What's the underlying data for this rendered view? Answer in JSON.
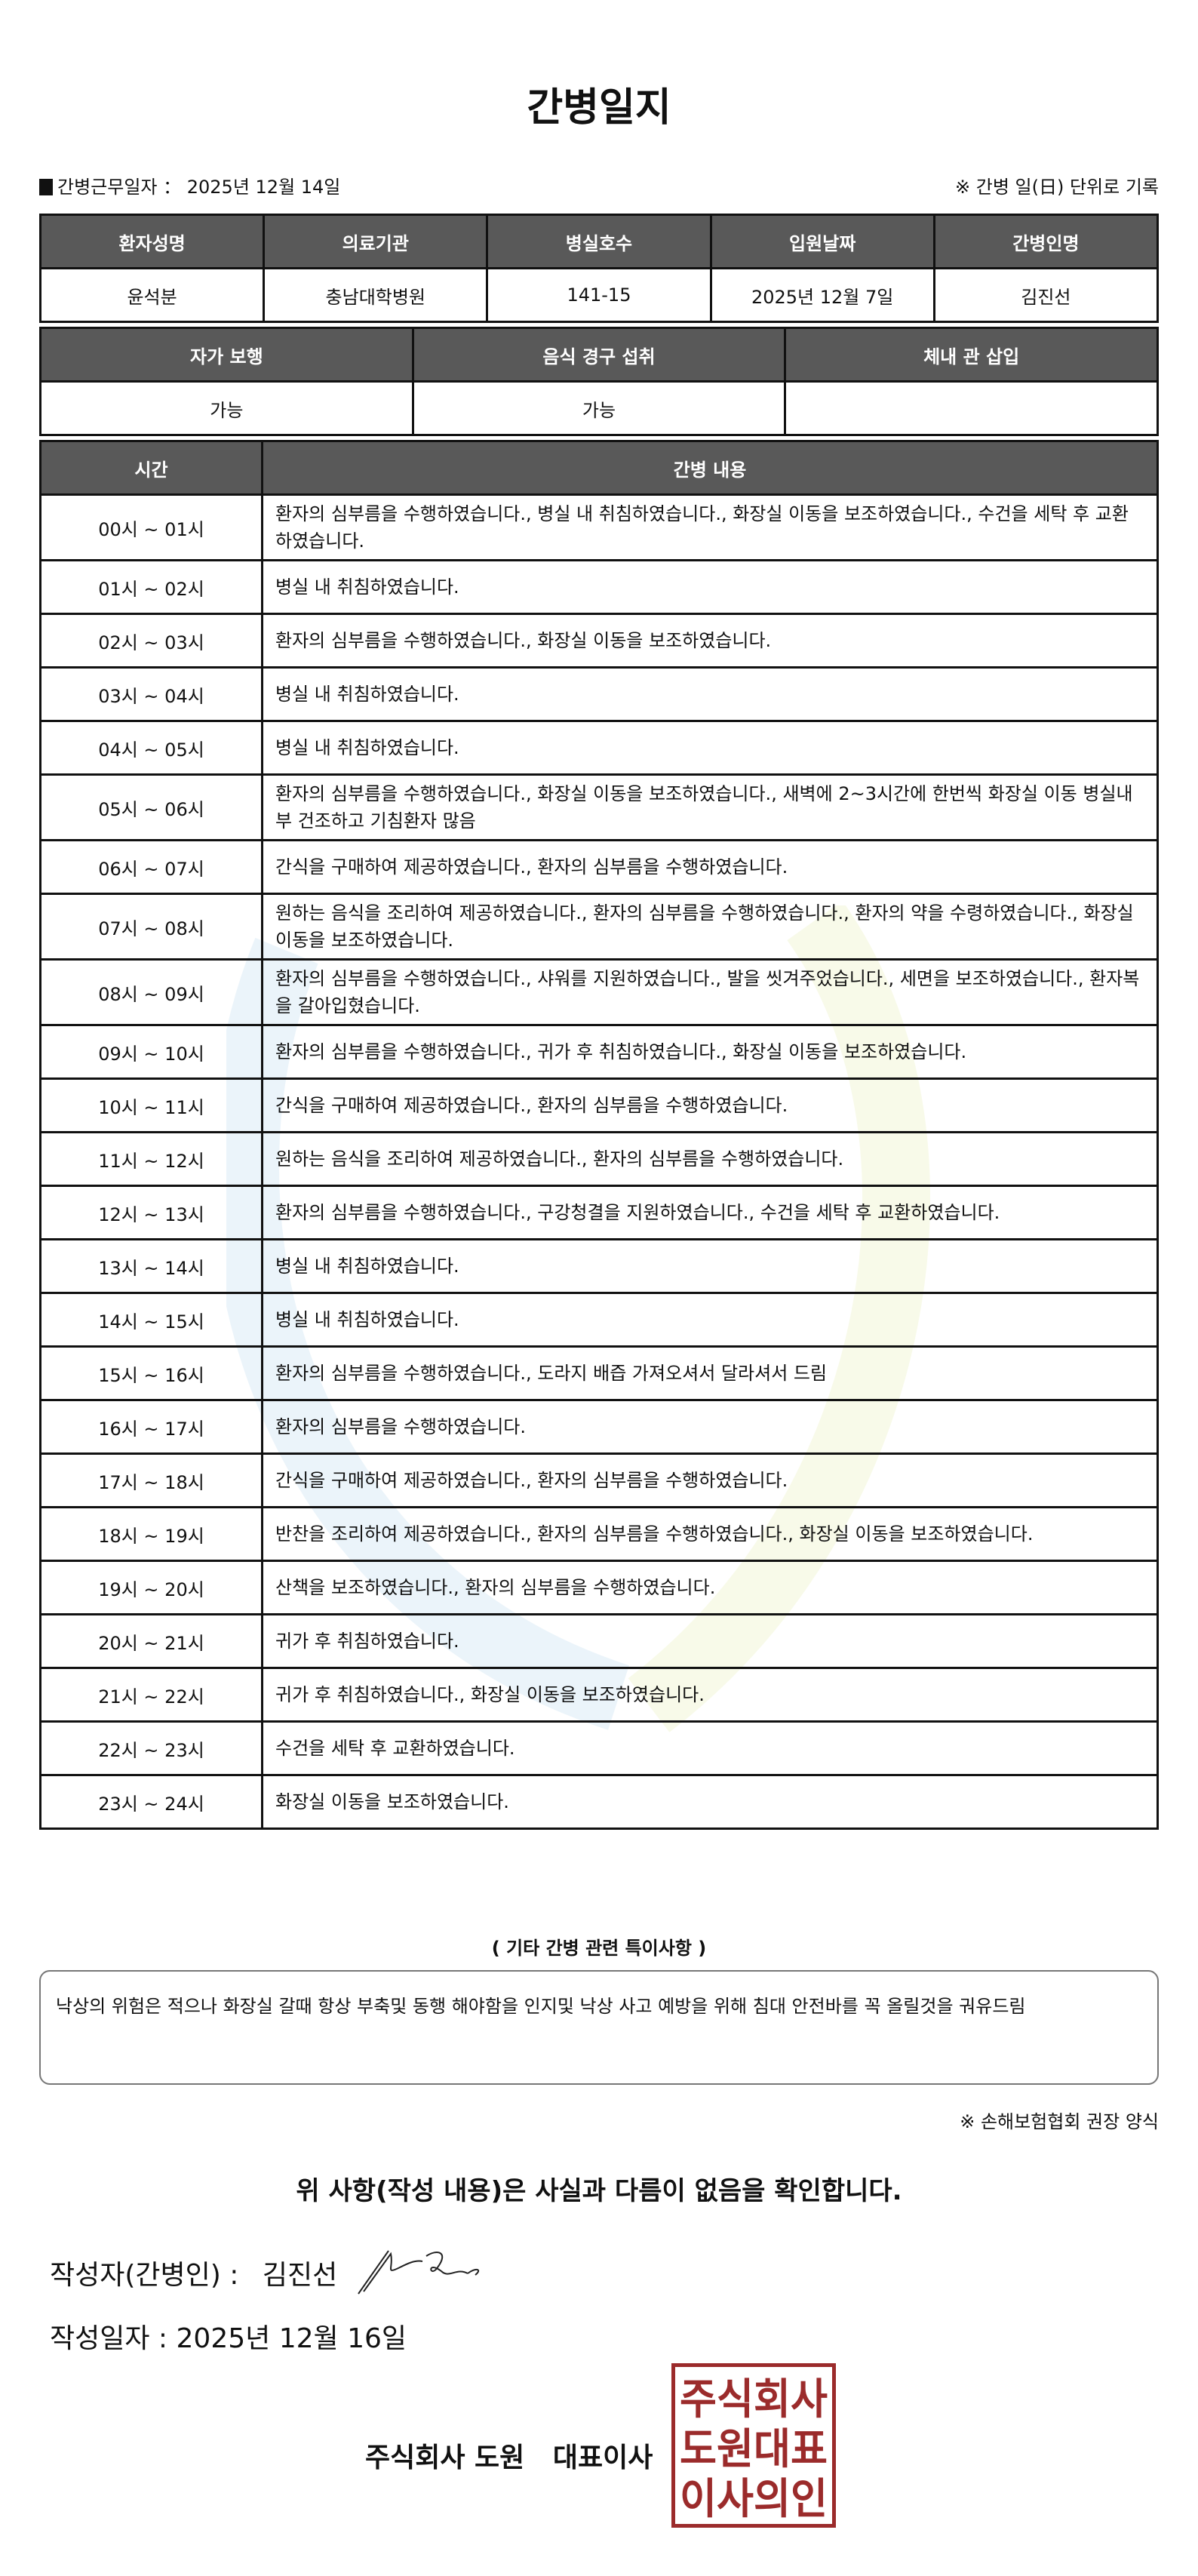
{
  "title": "간병일지",
  "info": {
    "date_label": "간병근무일자 ： 2025년 12월 14일",
    "unit_note": "※ 간병 일(日) 단위로 기록"
  },
  "patient_table": {
    "headers": [
      "환자성명",
      "의료기관",
      "병실호수",
      "입원날짜",
      "간병인명"
    ],
    "values": [
      "윤석분",
      "충남대학병원",
      "141-15",
      "2025년 12월 7일",
      "김진선"
    ]
  },
  "status_table": {
    "headers": [
      "자가 보행",
      "음식 경구 섭취",
      "체내 관 삽입"
    ],
    "values": [
      "가능",
      "가능",
      ""
    ]
  },
  "log_table": {
    "headers": [
      "시간",
      "간병 내용"
    ],
    "rows": [
      {
        "time": "00시 ~ 01시",
        "content": "환자의 심부름을 수행하였습니다., 병실 내 취침하였습니다., 화장실 이동을 보조하였습니다., 수건을 세탁 후 교환하였습니다."
      },
      {
        "time": "01시 ~ 02시",
        "content": "병실 내 취침하였습니다."
      },
      {
        "time": "02시 ~ 03시",
        "content": "환자의 심부름을 수행하였습니다., 화장실 이동을 보조하였습니다."
      },
      {
        "time": "03시 ~ 04시",
        "content": "병실 내 취침하였습니다."
      },
      {
        "time": "04시 ~ 05시",
        "content": "병실 내 취침하였습니다."
      },
      {
        "time": "05시 ~ 06시",
        "content": "환자의 심부름을 수행하였습니다., 화장실 이동을 보조하였습니다., 새벽에 2~3시간에 한번씩 화장실 이동 병실내부 건조하고 기침환자 많음"
      },
      {
        "time": "06시 ~ 07시",
        "content": "간식을 구매하여 제공하였습니다., 환자의 심부름을 수행하였습니다."
      },
      {
        "time": "07시 ~ 08시",
        "content": "원하는 음식을 조리하여 제공하였습니다., 환자의 심부름을 수행하였습니다., 환자의 약을 수령하였습니다., 화장실 이동을 보조하였습니다."
      },
      {
        "time": "08시 ~ 09시",
        "content": "환자의 심부름을 수행하였습니다., 샤워를 지원하였습니다., 발을 씻겨주었습니다., 세면을 보조하였습니다., 환자복을 갈아입혔습니다."
      },
      {
        "time": "09시 ~ 10시",
        "content": "환자의 심부름을 수행하였습니다., 귀가 후 취침하였습니다., 화장실 이동을 보조하였습니다."
      },
      {
        "time": "10시 ~ 11시",
        "content": "간식을 구매하여 제공하였습니다., 환자의 심부름을 수행하였습니다."
      },
      {
        "time": "11시 ~ 12시",
        "content": "원하는 음식을 조리하여 제공하였습니다., 환자의 심부름을 수행하였습니다."
      },
      {
        "time": "12시 ~ 13시",
        "content": "환자의 심부름을 수행하였습니다., 구강청결을 지원하였습니다., 수건을 세탁 후 교환하였습니다."
      },
      {
        "time": "13시 ~ 14시",
        "content": "병실 내 취침하였습니다."
      },
      {
        "time": "14시 ~ 15시",
        "content": "병실 내 취침하였습니다."
      },
      {
        "time": "15시 ~ 16시",
        "content": "환자의 심부름을 수행하였습니다., 도라지 배즙 가져오셔서 달라셔서 드림"
      },
      {
        "time": "16시 ~ 17시",
        "content": "환자의 심부름을 수행하였습니다."
      },
      {
        "time": "17시 ~ 18시",
        "content": "간식을 구매하여 제공하였습니다., 환자의 심부름을 수행하였습니다."
      },
      {
        "time": "18시 ~ 19시",
        "content": "반찬을 조리하여 제공하였습니다., 환자의 심부름을 수행하였습니다., 화장실 이동을 보조하였습니다."
      },
      {
        "time": "19시 ~ 20시",
        "content": "산책을 보조하였습니다., 환자의 심부름을 수행하였습니다."
      },
      {
        "time": "20시 ~ 21시",
        "content": "귀가 후 취침하였습니다."
      },
      {
        "time": "21시 ~ 22시",
        "content": "귀가 후 취침하였습니다., 화장실 이동을 보조하였습니다."
      },
      {
        "time": "22시 ~ 23시",
        "content": "수건을 세탁 후 교환하였습니다."
      },
      {
        "time": "23시 ~ 24시",
        "content": "화장실 이동을 보조하였습니다."
      }
    ]
  },
  "special": {
    "title": "( 기타 간병 관련 특이사항 )",
    "text": "낙상의 위험은 적으나 화장실 갈때 항상 부축및 동행 해야함을 인지및 낙상 사고 예방을 위해 침대 안전바를 꼭 올릴것을 궈유드림"
  },
  "form_note": "※ 손해보험협회 권장 양식",
  "confirm": "위 사항(작성 내용)은 사실과 다름이 없음을 확인합니다.",
  "writer": {
    "label": "작성자(간병인) :",
    "name": "김진선"
  },
  "write_date": {
    "label": "작성일자 :",
    "value": "2025년 12월 16일"
  },
  "company": "주식회사 도원   대표이사",
  "stamp": {
    "text": [
      "주식회사",
      "도원대표",
      "이사의인"
    ],
    "color": "#9b2b2b"
  },
  "colors": {
    "header_bg": "#595959",
    "header_text": "#ffffff"
  }
}
